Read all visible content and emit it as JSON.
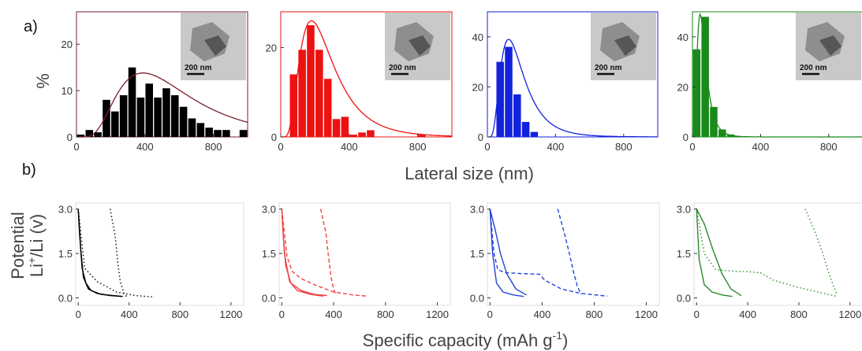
{
  "panel_labels": {
    "a": "a)",
    "b": "b)"
  },
  "chart_data": [
    {
      "type": "bar",
      "panel": "a",
      "ylabel": "%",
      "xlabel": "Lateral size (nm)",
      "scale_bar": "200 nm",
      "color": "#000000",
      "fit_color": "#7a1f2b",
      "xlim": [
        0,
        1000
      ],
      "ylim": [
        0,
        27
      ],
      "xticks": [
        0,
        400,
        800
      ],
      "yticks": [
        0,
        10,
        20
      ],
      "bin_width": 50,
      "x": [
        25,
        75,
        125,
        175,
        225,
        275,
        325,
        375,
        425,
        475,
        525,
        575,
        625,
        675,
        725,
        775,
        825,
        875,
        925,
        975
      ],
      "values": [
        0.5,
        1.5,
        1,
        8,
        5.5,
        9,
        15,
        8.5,
        11.5,
        8.5,
        10.5,
        9,
        6.5,
        4,
        3,
        2,
        1.5,
        1.5,
        0,
        1.5
      ],
      "fit": {
        "type": "lognormal",
        "peak_x": 390,
        "peak_y": 13.8
      }
    },
    {
      "type": "bar",
      "panel": "a",
      "scale_bar": "200 nm",
      "color": "#ee1111",
      "fit_color": "#ee1111",
      "xlim": [
        0,
        1000
      ],
      "ylim": [
        0,
        28
      ],
      "xticks": [
        0,
        400,
        800
      ],
      "yticks": [
        0,
        20
      ],
      "bin_width": 50,
      "x": [
        75,
        125,
        175,
        225,
        275,
        325,
        375,
        425,
        475,
        525,
        825
      ],
      "values": [
        14,
        19.5,
        25,
        19.5,
        13,
        4,
        4.5,
        0.5,
        1,
        1.5,
        0.5
      ],
      "fit": {
        "type": "lognormal",
        "peak_x": 180,
        "peak_y": 26
      }
    },
    {
      "type": "bar",
      "panel": "a",
      "scale_bar": "200 nm",
      "color": "#1122dd",
      "fit_color": "#1122dd",
      "xlim": [
        0,
        1000
      ],
      "ylim": [
        0,
        50
      ],
      "xticks": [
        0,
        400,
        800
      ],
      "yticks": [
        0,
        20,
        40
      ],
      "bin_width": 50,
      "x": [
        75,
        125,
        175,
        225,
        275
      ],
      "values": [
        30,
        36,
        17,
        6,
        2
      ],
      "fit": {
        "type": "lognormal",
        "peak_x": 125,
        "peak_y": 39
      }
    },
    {
      "type": "bar",
      "panel": "a",
      "scale_bar": "200 nm",
      "color": "#1a8a1a",
      "fit_color": "#1a8a1a",
      "xlim": [
        0,
        1000
      ],
      "ylim": [
        0,
        50
      ],
      "xticks": [
        0,
        400,
        800
      ],
      "yticks": [
        0,
        20,
        40
      ],
      "bin_width": 50,
      "x": [
        25,
        75,
        125,
        175,
        225
      ],
      "values": [
        35,
        48,
        12,
        3,
        1
      ],
      "fit": {
        "type": "lognormal",
        "peak_x": 45,
        "peak_y": 49
      }
    },
    {
      "type": "line",
      "panel": "b",
      "ylabel": "Potential\nLi+/Li (v)",
      "xlabel": "Specific capacity (mAh g-1)",
      "color": "#000000",
      "xlim": [
        -20,
        1300
      ],
      "ylim": [
        -0.25,
        3.2
      ],
      "xticks": [
        0,
        400,
        800,
        1200
      ],
      "yticks": [
        0.0,
        1.5,
        3.0
      ],
      "series": [
        {
          "style": "dotted",
          "x": [
            0,
            50,
            150,
            300,
            450,
            600
          ],
          "y": [
            3.0,
            1.0,
            0.55,
            0.2,
            0.08,
            0.03
          ]
        },
        {
          "style": "dotted",
          "x": [
            250,
            290,
            310,
            330,
            360,
            380
          ],
          "y": [
            3.0,
            2.1,
            1.2,
            0.55,
            0.15,
            0.05
          ]
        },
        {
          "style": "solid",
          "x": [
            0,
            10,
            30,
            60,
            100,
            180,
            300,
            350
          ],
          "y": [
            3.0,
            2.2,
            1.0,
            0.5,
            0.25,
            0.12,
            0.07,
            0.05
          ]
        },
        {
          "style": "solid",
          "x": [
            0,
            20,
            40,
            80,
            150,
            250,
            340
          ],
          "y": [
            3.0,
            1.6,
            0.7,
            0.3,
            0.15,
            0.08,
            0.05
          ]
        }
      ]
    },
    {
      "type": "line",
      "panel": "b",
      "color": "#ee4444",
      "xlim": [
        -20,
        1300
      ],
      "ylim": [
        -0.25,
        3.2
      ],
      "xticks": [
        0,
        400,
        800,
        1200
      ],
      "yticks": [
        0.0,
        1.5,
        3.0
      ],
      "series": [
        {
          "style": "dashed",
          "x": [
            0,
            40,
            80,
            150,
            250,
            400,
            550,
            660
          ],
          "y": [
            3.0,
            1.4,
            0.9,
            0.65,
            0.45,
            0.2,
            0.1,
            0.06
          ]
        },
        {
          "style": "dashed",
          "x": [
            300,
            340,
            360,
            380,
            400,
            420
          ],
          "y": [
            3.0,
            2.2,
            1.4,
            0.7,
            0.3,
            0.1
          ]
        },
        {
          "style": "solid",
          "x": [
            0,
            10,
            30,
            70,
            150,
            250,
            350
          ],
          "y": [
            3.0,
            2.2,
            1.1,
            0.5,
            0.25,
            0.12,
            0.08
          ]
        },
        {
          "style": "solid",
          "x": [
            0,
            20,
            60,
            120,
            220,
            320
          ],
          "y": [
            3.0,
            1.5,
            0.55,
            0.25,
            0.12,
            0.06
          ]
        }
      ]
    },
    {
      "type": "line",
      "panel": "b",
      "color": "#2244dd",
      "xlim": [
        -20,
        1300
      ],
      "ylim": [
        -0.25,
        3.2
      ],
      "xticks": [
        0,
        400,
        800,
        1200
      ],
      "yticks": [
        0.0,
        1.5,
        3.0
      ],
      "series": [
        {
          "style": "dashed",
          "x": [
            0,
            30,
            60,
            120,
            250,
            380,
            420,
            550,
            700,
            900
          ],
          "y": [
            3.0,
            1.5,
            0.95,
            0.85,
            0.82,
            0.8,
            0.6,
            0.3,
            0.15,
            0.06
          ]
        },
        {
          "style": "dashed",
          "x": [
            520,
            570,
            610,
            640,
            670,
            700
          ],
          "y": [
            3.0,
            2.2,
            1.5,
            0.9,
            0.4,
            0.12
          ]
        },
        {
          "style": "solid",
          "x": [
            0,
            40,
            80,
            130,
            200,
            280
          ],
          "y": [
            3.0,
            2.3,
            1.5,
            0.8,
            0.3,
            0.1
          ]
        },
        {
          "style": "solid",
          "x": [
            0,
            20,
            50,
            100,
            180,
            260
          ],
          "y": [
            3.0,
            1.5,
            0.5,
            0.2,
            0.1,
            0.05
          ]
        }
      ]
    },
    {
      "type": "line",
      "panel": "b",
      "color": "#2a8a2a",
      "xlim": [
        -20,
        1300
      ],
      "ylim": [
        -0.25,
        3.2
      ],
      "xticks": [
        0,
        400,
        800,
        1200
      ],
      "yticks": [
        0.0,
        1.5,
        3.0
      ],
      "series": [
        {
          "style": "dotted",
          "x": [
            0,
            60,
            150,
            300,
            420,
            500,
            600,
            800,
            1000,
            1100
          ],
          "y": [
            3.0,
            1.5,
            0.95,
            0.9,
            0.88,
            0.85,
            0.6,
            0.35,
            0.15,
            0.05
          ]
        },
        {
          "style": "dotted",
          "x": [
            850,
            920,
            980,
            1030,
            1070,
            1100
          ],
          "y": [
            3.0,
            2.3,
            1.6,
            0.9,
            0.4,
            0.1
          ]
        },
        {
          "style": "solid",
          "x": [
            0,
            60,
            130,
            200,
            270,
            350
          ],
          "y": [
            3.0,
            2.5,
            1.6,
            0.8,
            0.3,
            0.08
          ]
        },
        {
          "style": "solid",
          "x": [
            0,
            20,
            60,
            120,
            200,
            280
          ],
          "y": [
            3.0,
            1.3,
            0.45,
            0.2,
            0.1,
            0.05
          ]
        }
      ]
    }
  ]
}
